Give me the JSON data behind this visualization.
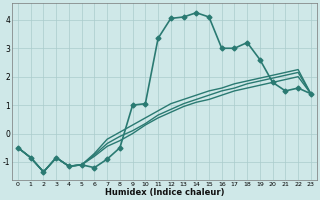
{
  "xlabel": "Humidex (Indice chaleur)",
  "xlim": [
    -0.5,
    23.5
  ],
  "ylim": [
    -1.65,
    4.6
  ],
  "yticks": [
    -1,
    0,
    1,
    2,
    3,
    4
  ],
  "xticks": [
    0,
    1,
    2,
    3,
    4,
    5,
    6,
    7,
    8,
    9,
    10,
    11,
    12,
    13,
    14,
    15,
    16,
    17,
    18,
    19,
    20,
    21,
    22,
    23
  ],
  "background_color": "#cfe8e8",
  "grid_color": "#aacccc",
  "line_color": "#2a7a72",
  "lines": [
    {
      "x": [
        0,
        1,
        2,
        3,
        4,
        5,
        6,
        7,
        8,
        9,
        10,
        11,
        12,
        13,
        14,
        15,
        16,
        17,
        18,
        19,
        20,
        21,
        22,
        23
      ],
      "y": [
        -0.5,
        -0.85,
        -1.35,
        -0.85,
        -1.15,
        -1.1,
        -1.2,
        -0.9,
        -0.5,
        1.0,
        1.05,
        3.35,
        4.05,
        4.1,
        4.25,
        4.1,
        3.0,
        3.0,
        3.2,
        2.6,
        1.8,
        1.5,
        1.6,
        1.4
      ],
      "markersize": 2.5,
      "linewidth": 1.2,
      "has_marker": true
    },
    {
      "x": [
        0,
        1,
        2,
        3,
        4,
        5,
        6,
        7,
        8,
        9,
        10,
        11,
        12,
        13,
        14,
        15,
        16,
        17,
        18,
        19,
        20,
        21,
        22,
        23
      ],
      "y": [
        -0.5,
        -0.85,
        -1.35,
        -0.85,
        -1.15,
        -1.1,
        -0.8,
        -0.45,
        -0.25,
        0.0,
        0.3,
        0.55,
        0.75,
        0.95,
        1.1,
        1.2,
        1.35,
        1.5,
        1.6,
        1.7,
        1.8,
        1.9,
        2.0,
        1.4
      ],
      "markersize": 0,
      "linewidth": 1.0,
      "has_marker": false
    },
    {
      "x": [
        0,
        1,
        2,
        3,
        4,
        5,
        6,
        7,
        8,
        9,
        10,
        11,
        12,
        13,
        14,
        15,
        16,
        17,
        18,
        19,
        20,
        21,
        22,
        23
      ],
      "y": [
        -0.5,
        -0.85,
        -1.35,
        -0.85,
        -1.15,
        -1.1,
        -0.75,
        -0.35,
        -0.1,
        0.1,
        0.35,
        0.65,
        0.85,
        1.05,
        1.2,
        1.35,
        1.5,
        1.6,
        1.75,
        1.85,
        1.95,
        2.05,
        2.15,
        1.4
      ],
      "markersize": 0,
      "linewidth": 1.0,
      "has_marker": false
    },
    {
      "x": [
        0,
        1,
        2,
        3,
        4,
        5,
        6,
        7,
        8,
        9,
        10,
        11,
        12,
        13,
        14,
        15,
        16,
        17,
        18,
        19,
        20,
        21,
        22,
        23
      ],
      "y": [
        -0.5,
        -0.85,
        -1.35,
        -0.85,
        -1.15,
        -1.1,
        -0.7,
        -0.2,
        0.05,
        0.3,
        0.55,
        0.8,
        1.05,
        1.2,
        1.35,
        1.5,
        1.6,
        1.75,
        1.85,
        1.95,
        2.05,
        2.15,
        2.25,
        1.4
      ],
      "markersize": 0,
      "linewidth": 1.0,
      "has_marker": false
    }
  ]
}
